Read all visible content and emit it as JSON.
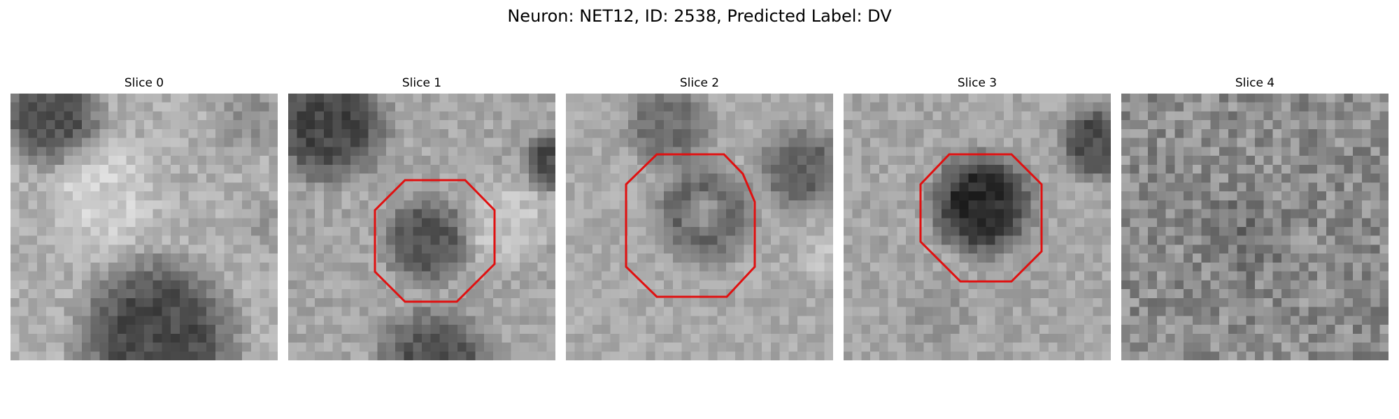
{
  "figure": {
    "title": "Neuron: NET12, ID: 2538, Predicted Label: DV"
  },
  "slices": [
    {
      "label": "Slice 0",
      "roi": false
    },
    {
      "label": "Slice 1",
      "roi": true
    },
    {
      "label": "Slice 2",
      "roi": true
    },
    {
      "label": "Slice 3",
      "roi": true
    },
    {
      "label": "Slice 4",
      "roi": false
    }
  ],
  "colors": {
    "roi": "#e01010",
    "background": "#ffffff"
  }
}
